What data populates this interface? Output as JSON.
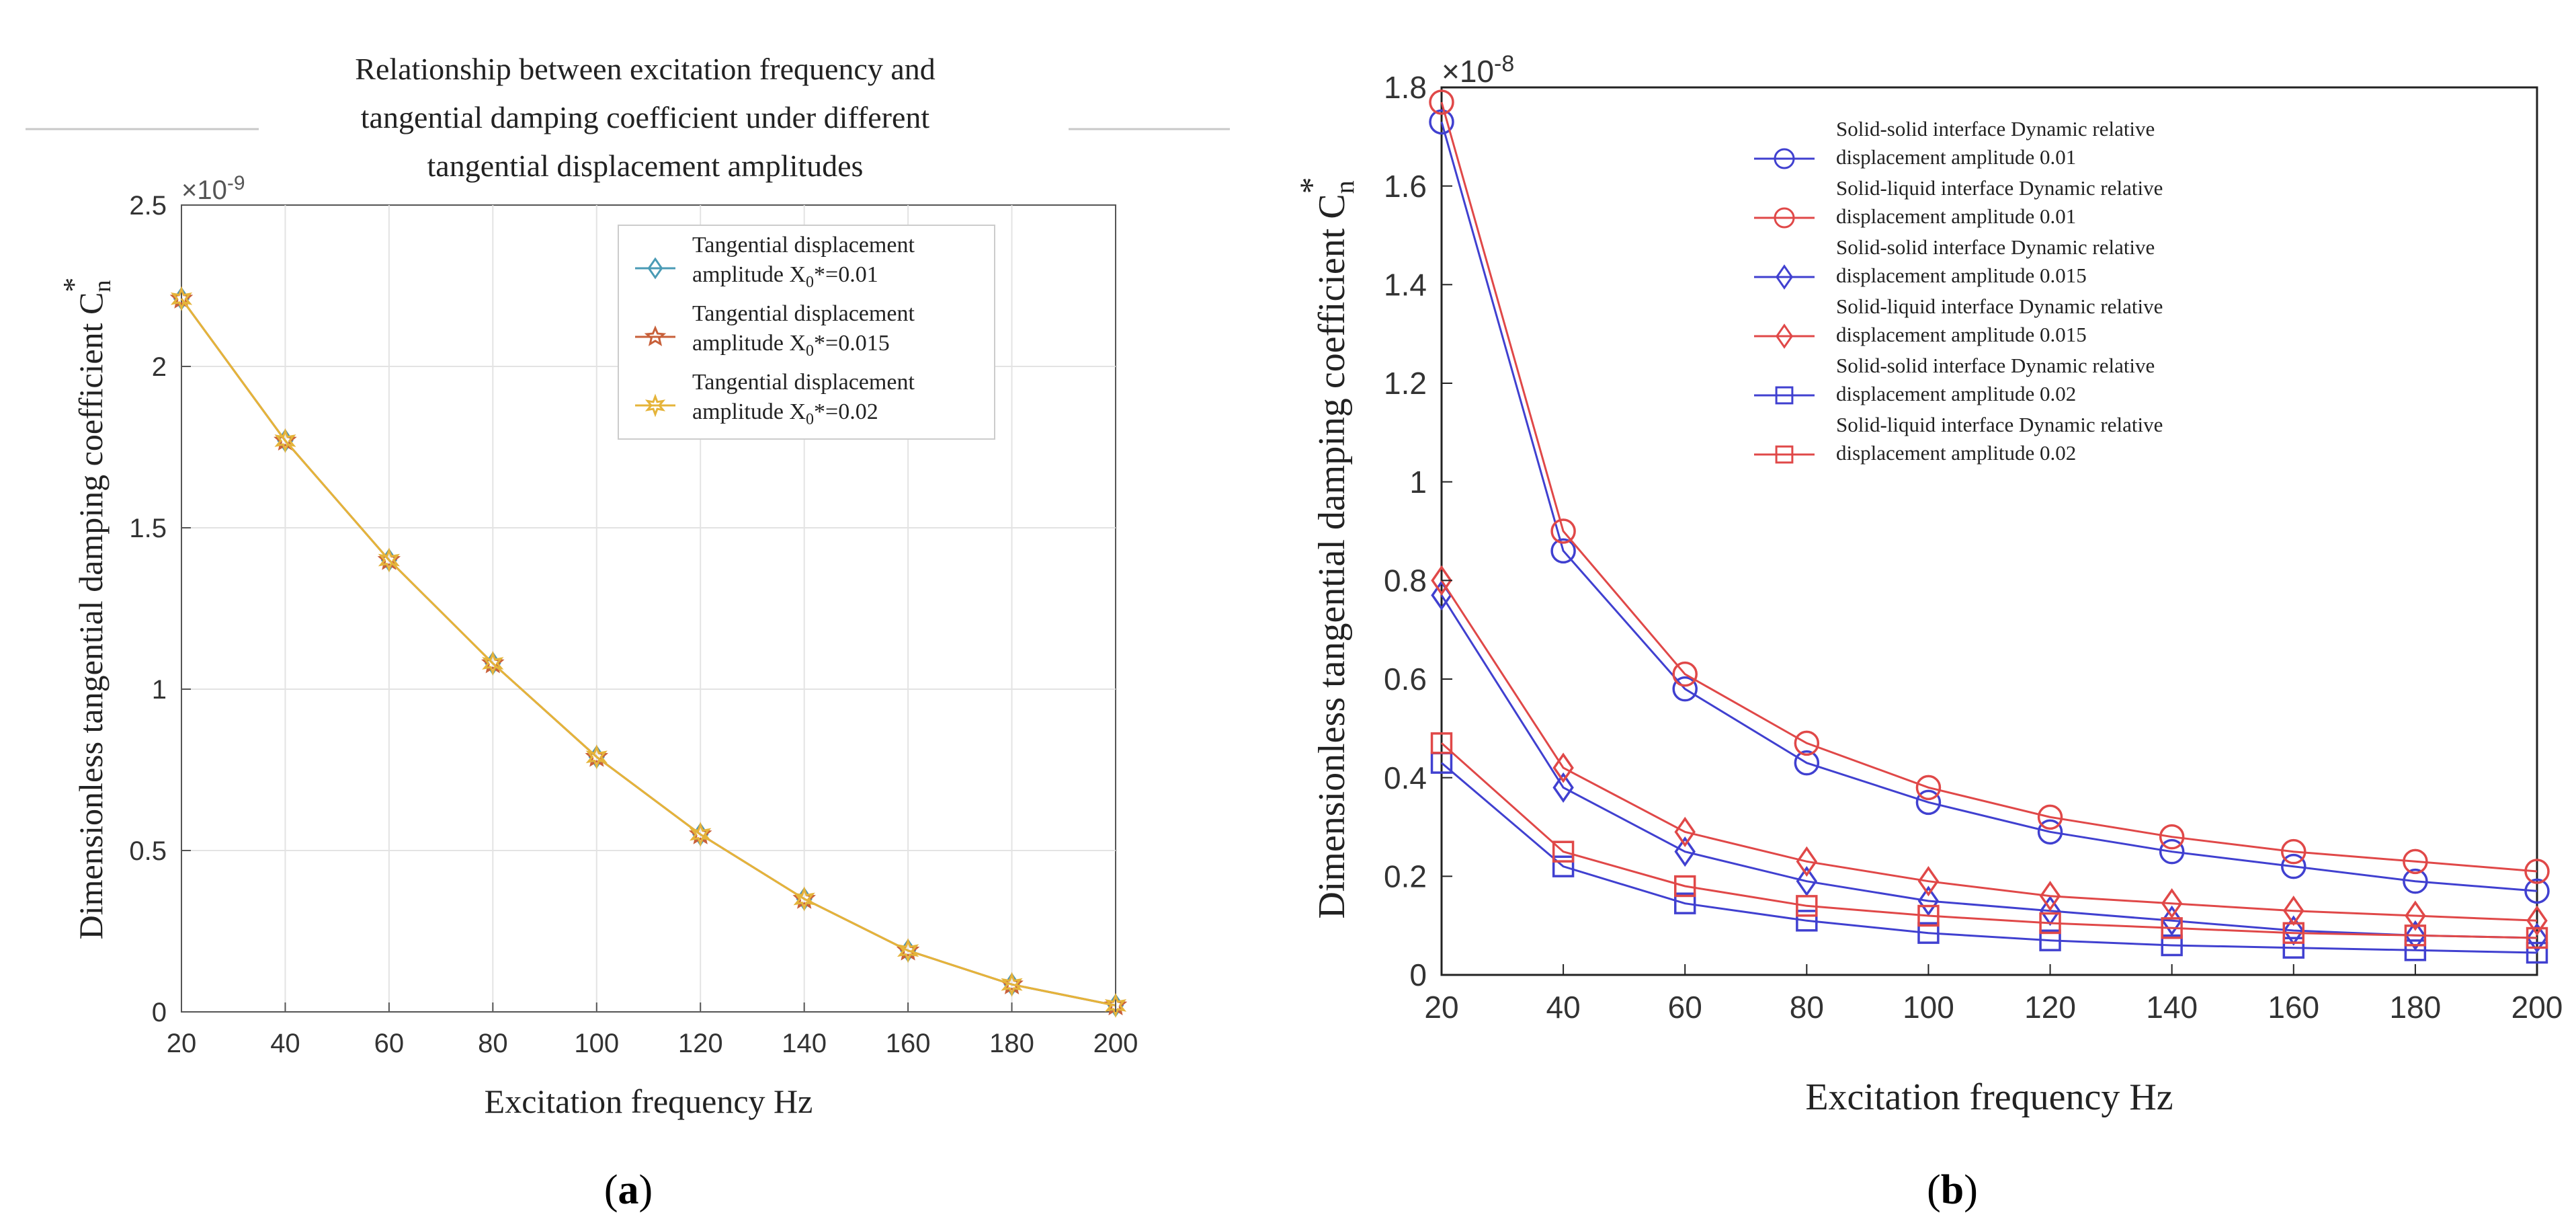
{
  "chart_data": [
    {
      "panel": "a",
      "type": "line",
      "title_lines": [
        "Relationship between excitation frequency and",
        "tangential damping coefficient under different",
        "tangential displacement amplitudes"
      ],
      "xlabel": "Excitation frequency Hz",
      "ylabel": "Dimensionless tangential damping coefficient C",
      "ylabel_sub": "n",
      "ylabel_sup": "*",
      "multiplier": "×10",
      "multiplier_exp": "-9",
      "xlim": [
        20,
        200
      ],
      "ylim": [
        0,
        2.5
      ],
      "xticks": [
        20,
        40,
        60,
        80,
        100,
        120,
        140,
        160,
        180,
        200
      ],
      "yticks": [
        0,
        0.5,
        1,
        1.5,
        2,
        2.5
      ],
      "ytick_labels": [
        "0",
        "0.5",
        "1",
        "1.5",
        "2",
        "2.5"
      ],
      "grid": true,
      "legend_position": "top-right",
      "series": [
        {
          "name": "amplitude X0*=0.01",
          "label_line1": "Tangential displacement",
          "label_line2": "amplitude X",
          "label_sub": "0",
          "label_rest": "*=0.01",
          "color": "#4a9bb5",
          "marker": "diamond",
          "x": [
            20,
            40,
            60,
            80,
            100,
            120,
            140,
            160,
            180,
            200
          ],
          "values": [
            2.21,
            1.77,
            1.4,
            1.08,
            0.79,
            0.55,
            0.35,
            0.19,
            0.085,
            0.02
          ]
        },
        {
          "name": "amplitude X0*=0.015",
          "label_line1": "Tangential displacement",
          "label_line2": "amplitude X",
          "label_sub": "0",
          "label_rest": "*=0.015",
          "color": "#c8603a",
          "marker": "star",
          "x": [
            20,
            40,
            60,
            80,
            100,
            120,
            140,
            160,
            180,
            200
          ],
          "values": [
            2.21,
            1.77,
            1.4,
            1.08,
            0.79,
            0.55,
            0.35,
            0.19,
            0.085,
            0.02
          ]
        },
        {
          "name": "amplitude X0*=0.02",
          "label_line1": "Tangential displacement",
          "label_line2": "amplitude X",
          "label_sub": "0",
          "label_rest": "*=0.02",
          "color": "#e5b43a",
          "marker": "hexagram",
          "x": [
            20,
            40,
            60,
            80,
            100,
            120,
            140,
            160,
            180,
            200
          ],
          "values": [
            2.21,
            1.77,
            1.4,
            1.08,
            0.79,
            0.55,
            0.35,
            0.19,
            0.085,
            0.02
          ]
        }
      ],
      "caption": "a"
    },
    {
      "panel": "b",
      "type": "line",
      "title_lines": [],
      "xlabel": "Excitation frequency Hz",
      "ylabel": "Dimensionless tangential damping coefficient C",
      "ylabel_sub": "n",
      "ylabel_sup": "*",
      "multiplier": "×10",
      "multiplier_exp": "-8",
      "xlim": [
        20,
        200
      ],
      "ylim": [
        0,
        1.8
      ],
      "xticks": [
        20,
        40,
        60,
        80,
        100,
        120,
        140,
        160,
        180,
        200
      ],
      "yticks": [
        0,
        0.2,
        0.4,
        0.6,
        0.8,
        1,
        1.2,
        1.4,
        1.6,
        1.8
      ],
      "ytick_labels": [
        "0",
        "0.2",
        "0.4",
        "0.6",
        "0.8",
        "1",
        "1.2",
        "1.4",
        "1.6",
        "1.8"
      ],
      "grid": false,
      "legend_position": "top-right",
      "series": [
        {
          "name": "Solid-solid 0.01",
          "label_line1": "Solid-solid     interface     Dynamic     relative",
          "label_line2": "displacement amplitude 0.01",
          "color": "#4040d0",
          "marker": "circle",
          "x": [
            20,
            40,
            60,
            80,
            100,
            120,
            140,
            160,
            180,
            200
          ],
          "values": [
            1.73,
            0.86,
            0.58,
            0.43,
            0.35,
            0.29,
            0.25,
            0.22,
            0.19,
            0.17
          ]
        },
        {
          "name": "Solid-liquid 0.01",
          "label_line1": "Solid-liquid     interface     Dynamic     relative",
          "label_line2": "displacement amplitude 0.01",
          "color": "#e04848",
          "marker": "circle",
          "x": [
            20,
            40,
            60,
            80,
            100,
            120,
            140,
            160,
            180,
            200
          ],
          "values": [
            1.77,
            0.9,
            0.61,
            0.47,
            0.38,
            0.32,
            0.28,
            0.25,
            0.23,
            0.21
          ]
        },
        {
          "name": "Solid-solid 0.015",
          "label_line1": "Solid-solid     interface     Dynamic     relative",
          "label_line2": "displacement amplitude 0.015",
          "color": "#4040d0",
          "marker": "diamond",
          "x": [
            20,
            40,
            60,
            80,
            100,
            120,
            140,
            160,
            180,
            200
          ],
          "values": [
            0.77,
            0.38,
            0.25,
            0.19,
            0.15,
            0.13,
            0.11,
            0.09,
            0.08,
            0.075
          ]
        },
        {
          "name": "Solid-liquid 0.015",
          "label_line1": "Solid-liquid     interface     Dynamic     relative",
          "label_line2": "displacement amplitude 0.015",
          "color": "#e04848",
          "marker": "diamond",
          "x": [
            20,
            40,
            60,
            80,
            100,
            120,
            140,
            160,
            180,
            200
          ],
          "values": [
            0.8,
            0.42,
            0.29,
            0.23,
            0.19,
            0.16,
            0.145,
            0.13,
            0.12,
            0.11
          ]
        },
        {
          "name": "Solid-solid 0.02",
          "label_line1": "Solid-solid     interface     Dynamic     relative",
          "label_line2": "displacement amplitude 0.02",
          "color": "#4040d0",
          "marker": "square",
          "x": [
            20,
            40,
            60,
            80,
            100,
            120,
            140,
            160,
            180,
            200
          ],
          "values": [
            0.43,
            0.22,
            0.145,
            0.11,
            0.085,
            0.07,
            0.06,
            0.055,
            0.05,
            0.045
          ]
        },
        {
          "name": "Solid-liquid 0.02",
          "label_line1": "Solid-liquid interface Dynamic relative",
          "label_line2": "displacement amplitude 0.02",
          "color": "#e04848",
          "marker": "square",
          "x": [
            20,
            40,
            60,
            80,
            100,
            120,
            140,
            160,
            180,
            200
          ],
          "values": [
            0.47,
            0.25,
            0.18,
            0.14,
            0.12,
            0.105,
            0.095,
            0.085,
            0.08,
            0.075
          ]
        }
      ],
      "caption": "b"
    }
  ]
}
